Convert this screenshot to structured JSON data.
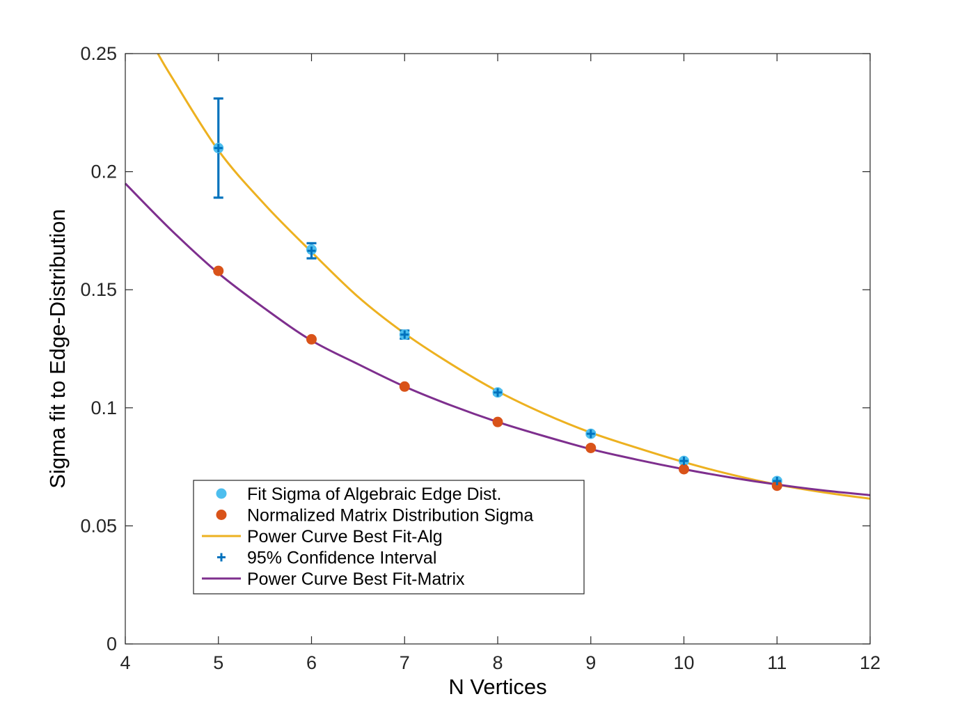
{
  "chart_data": {
    "type": "scatter",
    "title": "",
    "xlabel": "N Vertices",
    "ylabel": "Sigma fit to Edge-Distribution",
    "xlim": [
      4,
      12
    ],
    "ylim": [
      0,
      0.25
    ],
    "xticks": [
      "4",
      "5",
      "6",
      "7",
      "8",
      "9",
      "10",
      "11",
      "12"
    ],
    "yticks": [
      "0",
      "0.05",
      "0.1",
      "0.15",
      "0.2",
      "0.25"
    ],
    "grid": false,
    "legend_placement": "lower-left",
    "series": [
      {
        "name": "Fit Sigma of Algebraic Edge Dist.",
        "kind": "markers",
        "color": "#4DBEEE",
        "x": [
          5,
          6,
          7,
          8,
          9,
          10,
          11
        ],
        "y": [
          0.21,
          0.167,
          0.131,
          0.1065,
          0.089,
          0.0775,
          0.069
        ]
      },
      {
        "name": "Normalized Matrix Distribution Sigma",
        "kind": "markers",
        "color": "#D95319",
        "x": [
          5,
          6,
          7,
          8,
          9,
          10,
          11
        ],
        "y": [
          0.158,
          0.129,
          0.109,
          0.094,
          0.083,
          0.074,
          0.067
        ]
      },
      {
        "name": "Power Curve Best Fit-Alg",
        "kind": "curve",
        "color": "#EDB120",
        "x": [
          4.35,
          4.5,
          5,
          5.5,
          6,
          6.5,
          7,
          7.5,
          8,
          8.5,
          9,
          9.5,
          10,
          10.5,
          11,
          11.5,
          12
        ],
        "y": [
          0.25,
          0.24,
          0.209,
          0.186,
          0.166,
          0.147,
          0.1315,
          0.1185,
          0.107,
          0.0975,
          0.0895,
          0.083,
          0.077,
          0.0718,
          0.0675,
          0.0642,
          0.0615
        ]
      },
      {
        "name": "95% Confidence Interval",
        "kind": "errorbar",
        "color": "#0072BD",
        "x": [
          5,
          6,
          7,
          8,
          9,
          10,
          11
        ],
        "y": [
          0.21,
          0.1665,
          0.131,
          0.1065,
          0.089,
          0.0775,
          0.069
        ],
        "lower": [
          0.189,
          0.1633,
          0.1293,
          0.1058,
          0.0885,
          0.077,
          0.0685
        ],
        "upper": [
          0.231,
          0.1697,
          0.1327,
          0.1072,
          0.0895,
          0.078,
          0.0695
        ]
      },
      {
        "name": "Power Curve Best Fit-Matrix",
        "kind": "curve",
        "color": "#7E2F8E",
        "x": [
          4,
          4.5,
          5,
          5.5,
          6,
          6.5,
          7,
          7.5,
          8,
          8.5,
          9,
          9.5,
          10,
          10.5,
          11,
          11.5,
          12
        ],
        "y": [
          0.195,
          0.175,
          0.157,
          0.142,
          0.1285,
          0.1185,
          0.109,
          0.101,
          0.094,
          0.088,
          0.0825,
          0.078,
          0.074,
          0.0705,
          0.0675,
          0.065,
          0.063
        ]
      }
    ]
  }
}
